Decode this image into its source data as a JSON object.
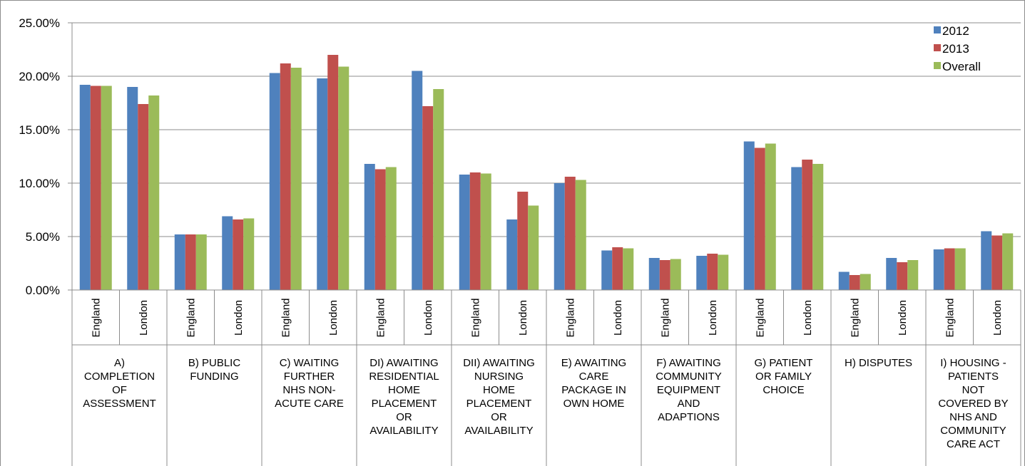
{
  "chart_data": {
    "type": "bar",
    "title": "",
    "xlabel": "",
    "ylabel": "",
    "ylim": [
      0,
      0.25
    ],
    "yticks": [
      "0.00%",
      "5.00%",
      "10.00%",
      "15.00%",
      "20.00%",
      "25.00%"
    ],
    "grid": true,
    "legend_position": "top-right",
    "colors": [
      "#4F81BD",
      "#C0504D",
      "#9BBB59"
    ],
    "groups": [
      {
        "label": [
          "A)",
          "COMPLETION",
          "OF",
          "ASSESSMENT"
        ]
      },
      {
        "label": [
          "B) PUBLIC",
          "FUNDING"
        ]
      },
      {
        "label": [
          "C) WAITING",
          "FURTHER",
          "NHS NON-",
          "ACUTE CARE"
        ]
      },
      {
        "label": [
          "DI) AWAITING",
          "RESIDENTIAL",
          "HOME",
          "PLACEMENT",
          "OR",
          "AVAILABILITY"
        ]
      },
      {
        "label": [
          "DII) AWAITING",
          "NURSING",
          "HOME",
          "PLACEMENT",
          "OR",
          "AVAILABILITY"
        ]
      },
      {
        "label": [
          "E) AWAITING",
          "CARE",
          "PACKAGE IN",
          "OWN HOME"
        ]
      },
      {
        "label": [
          "F) AWAITING",
          "COMMUNITY",
          "EQUIPMENT",
          "AND",
          "ADAPTIONS"
        ]
      },
      {
        "label": [
          "G) PATIENT",
          "OR FAMILY",
          "CHOICE"
        ]
      },
      {
        "label": [
          "H) DISPUTES"
        ]
      },
      {
        "label": [
          "I) HOUSING -",
          "PATIENTS",
          "NOT",
          "COVERED BY",
          "NHS AND",
          "COMMUNITY",
          "CARE ACT"
        ]
      }
    ],
    "subcategories": [
      "England",
      "London"
    ],
    "series": [
      {
        "name": "2012",
        "values": [
          0.192,
          0.19,
          0.052,
          0.069,
          0.203,
          0.198,
          0.118,
          0.205,
          0.108,
          0.066,
          0.1,
          0.037,
          0.03,
          0.032,
          0.139,
          0.115,
          0.017,
          0.03,
          0.038,
          0.055
        ]
      },
      {
        "name": "2013",
        "values": [
          0.191,
          0.174,
          0.052,
          0.066,
          0.212,
          0.22,
          0.113,
          0.172,
          0.11,
          0.092,
          0.106,
          0.04,
          0.028,
          0.034,
          0.133,
          0.122,
          0.014,
          0.026,
          0.039,
          0.051
        ]
      },
      {
        "name": "Overall",
        "values": [
          0.191,
          0.182,
          0.052,
          0.067,
          0.208,
          0.209,
          0.115,
          0.188,
          0.109,
          0.079,
          0.103,
          0.039,
          0.029,
          0.033,
          0.137,
          0.118,
          0.015,
          0.028,
          0.039,
          0.053
        ]
      }
    ]
  }
}
